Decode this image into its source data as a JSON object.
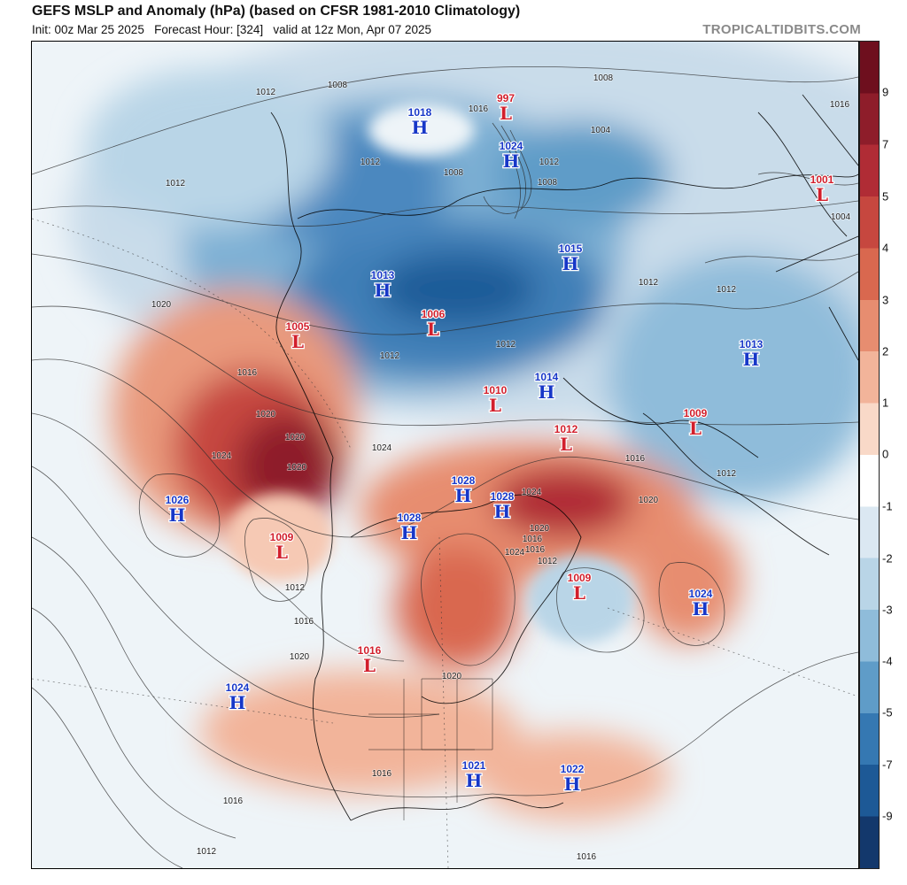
{
  "header": {
    "title": "GEFS MSLP and Anomaly (hPa) (based on CFSR 1981-2010 Climatology)",
    "subtitle": "Init: 00z Mar 25 2025   Forecast Hour: [324]   valid at 12z Mon, Apr 07 2025",
    "brand": "TROPICALTIDBITS.COM"
  },
  "colorbar": {
    "labels": [
      "9",
      "7",
      "5",
      "4",
      "3",
      "2",
      "1",
      "0",
      "-1",
      "-2",
      "-3",
      "-4",
      "-5",
      "-7",
      "-9"
    ],
    "colors": [
      "#6e0f1e",
      "#8e1d2a",
      "#b02c35",
      "#c6473f",
      "#d9684f",
      "#e78d70",
      "#f2b49a",
      "#f9d9c8",
      "#ffffff",
      "#dbe8f2",
      "#b9d5e7",
      "#8fbcda",
      "#5f9cc8",
      "#3578b2",
      "#1d5996",
      "#13386c"
    ]
  },
  "pressure_centers": [
    {
      "type": "H",
      "value": "1018",
      "color": "blue"
    },
    {
      "type": "L",
      "value": "997",
      "color": "red"
    },
    {
      "type": "H",
      "value": "1024",
      "color": "blue"
    },
    {
      "type": "L",
      "value": "1001",
      "color": "red"
    },
    {
      "type": "H",
      "value": "1015",
      "color": "blue"
    },
    {
      "type": "H",
      "value": "1013",
      "color": "blue"
    },
    {
      "type": "L",
      "value": "1006",
      "color": "red"
    },
    {
      "type": "L",
      "value": "1005",
      "color": "red"
    },
    {
      "type": "H",
      "value": "1013",
      "color": "blue"
    },
    {
      "type": "H",
      "value": "1014",
      "color": "blue"
    },
    {
      "type": "L",
      "value": "1010",
      "color": "red"
    },
    {
      "type": "L",
      "value": "1009",
      "color": "red"
    },
    {
      "type": "L",
      "value": "1012",
      "color": "red"
    },
    {
      "type": "H",
      "value": "1028",
      "color": "blue"
    },
    {
      "type": "H",
      "value": "1028",
      "color": "blue"
    },
    {
      "type": "H",
      "value": "1026",
      "color": "blue"
    },
    {
      "type": "H",
      "value": "1028",
      "color": "blue"
    },
    {
      "type": "L",
      "value": "1009",
      "color": "red"
    },
    {
      "type": "L",
      "value": "1009",
      "color": "red"
    },
    {
      "type": "H",
      "value": "1024",
      "color": "blue"
    },
    {
      "type": "L",
      "value": "1016",
      "color": "red"
    },
    {
      "type": "H",
      "value": "1024",
      "color": "blue"
    },
    {
      "type": "H",
      "value": "1021",
      "color": "blue"
    },
    {
      "type": "H",
      "value": "1022",
      "color": "blue"
    }
  ],
  "contour_labels": [
    "1012",
    "1008",
    "1008",
    "1016",
    "1012",
    "1012",
    "1008",
    "1004",
    "1008",
    "1016",
    "1004",
    "1020",
    "1016",
    "1020",
    "1024",
    "1020",
    "1012",
    "1012",
    "1012",
    "1012",
    "1012",
    "1024",
    "1024",
    "1020",
    "1016",
    "1012",
    "1016",
    "1020",
    "1020",
    "1024",
    "1020",
    "1012",
    "1016",
    "1020",
    "1016",
    "1016",
    "1012",
    "1012",
    "1016",
    "1016"
  ]
}
